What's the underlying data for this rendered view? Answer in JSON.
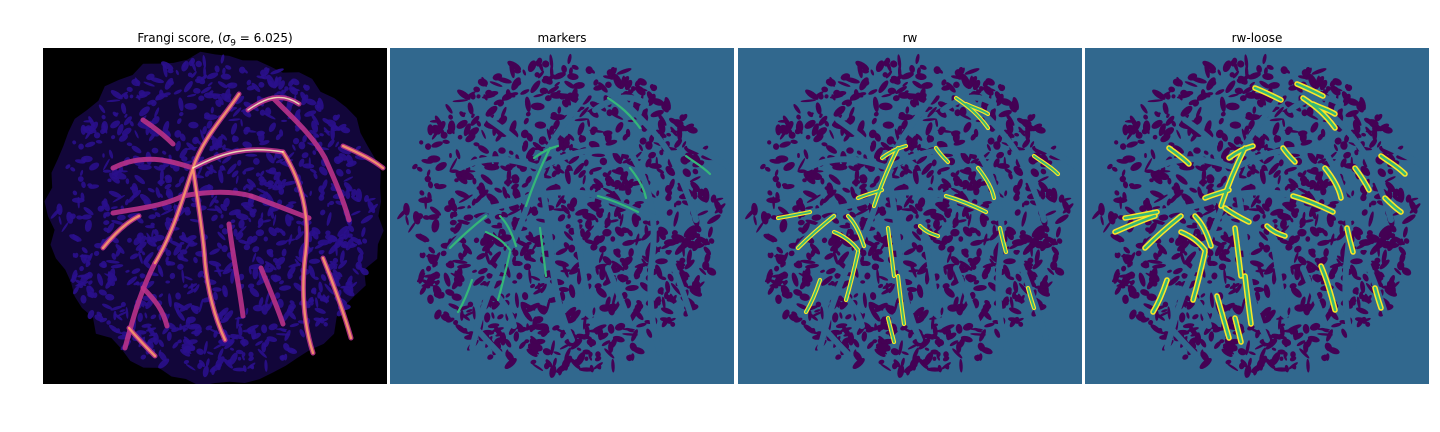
{
  "panels": [
    {
      "title_prefix": "Frangi score, (",
      "title_sigma": "σ",
      "title_sub": "9",
      "title_suffix": " = 6.025)",
      "kind": "frangi",
      "bg": "#000000",
      "blob_color": "#2a0f8c",
      "vessel_colors": [
        "#b93289",
        "#fb9f6a",
        "#fcfdbf"
      ]
    },
    {
      "title": "markers",
      "kind": "markers",
      "bg": "#31688e",
      "blob_color": "#440154",
      "marker_color": "#35b779"
    },
    {
      "title": "rw",
      "kind": "rw",
      "bg": "#31688e",
      "blob_color": "#440154",
      "seg_outer": "#fde725",
      "seg_inner": "#35b779"
    },
    {
      "title": "rw-loose",
      "kind": "rwloose",
      "bg": "#31688e",
      "blob_color": "#440154",
      "seg_outer": "#fde725",
      "seg_inner": "#35b779"
    }
  ]
}
